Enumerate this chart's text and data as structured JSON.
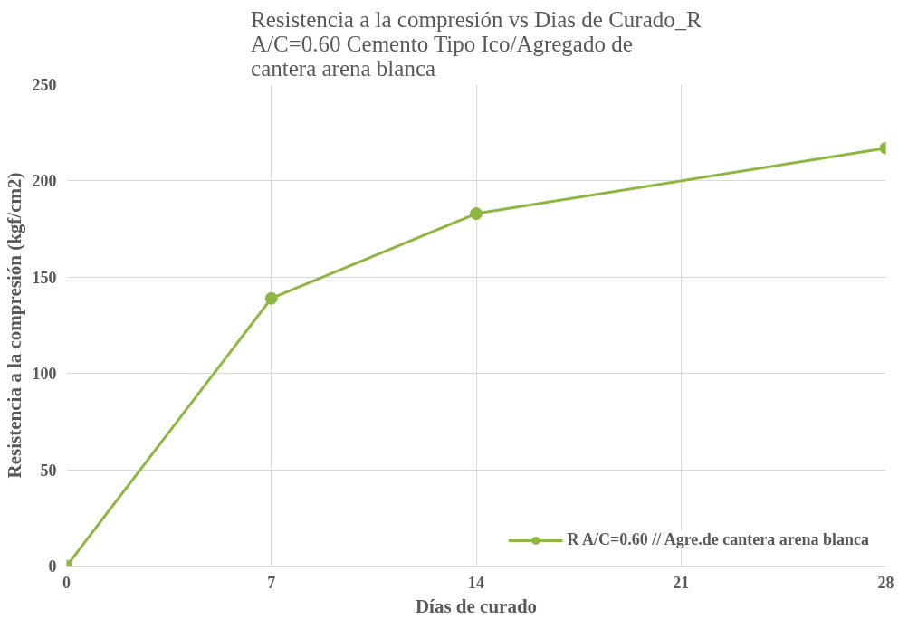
{
  "chart_data": {
    "type": "line",
    "title": "Resistencia a la compresión vs Dias de Curado_R\nA/C=0.60 Cemento Tipo Ico/Agregado de\ncantera arena blanca",
    "xlabel": "Días de curado",
    "ylabel": "Resistencia a la compresión (kgf/cm2)",
    "x": [
      0,
      7,
      14,
      28
    ],
    "series": [
      {
        "name": "R A/C=0.60 // Agre.de cantera arena blanca",
        "color": "#8cb840",
        "values": [
          0,
          139,
          183,
          217
        ]
      }
    ],
    "xlim": [
      0,
      28
    ],
    "xticks": [
      0,
      7,
      14,
      21,
      28
    ],
    "ylim": [
      0,
      250
    ],
    "yticks": [
      0,
      50,
      100,
      150,
      200,
      250
    ],
    "grid": true,
    "legend": "bottom right",
    "marker": "circle",
    "line_style": "solid"
  }
}
